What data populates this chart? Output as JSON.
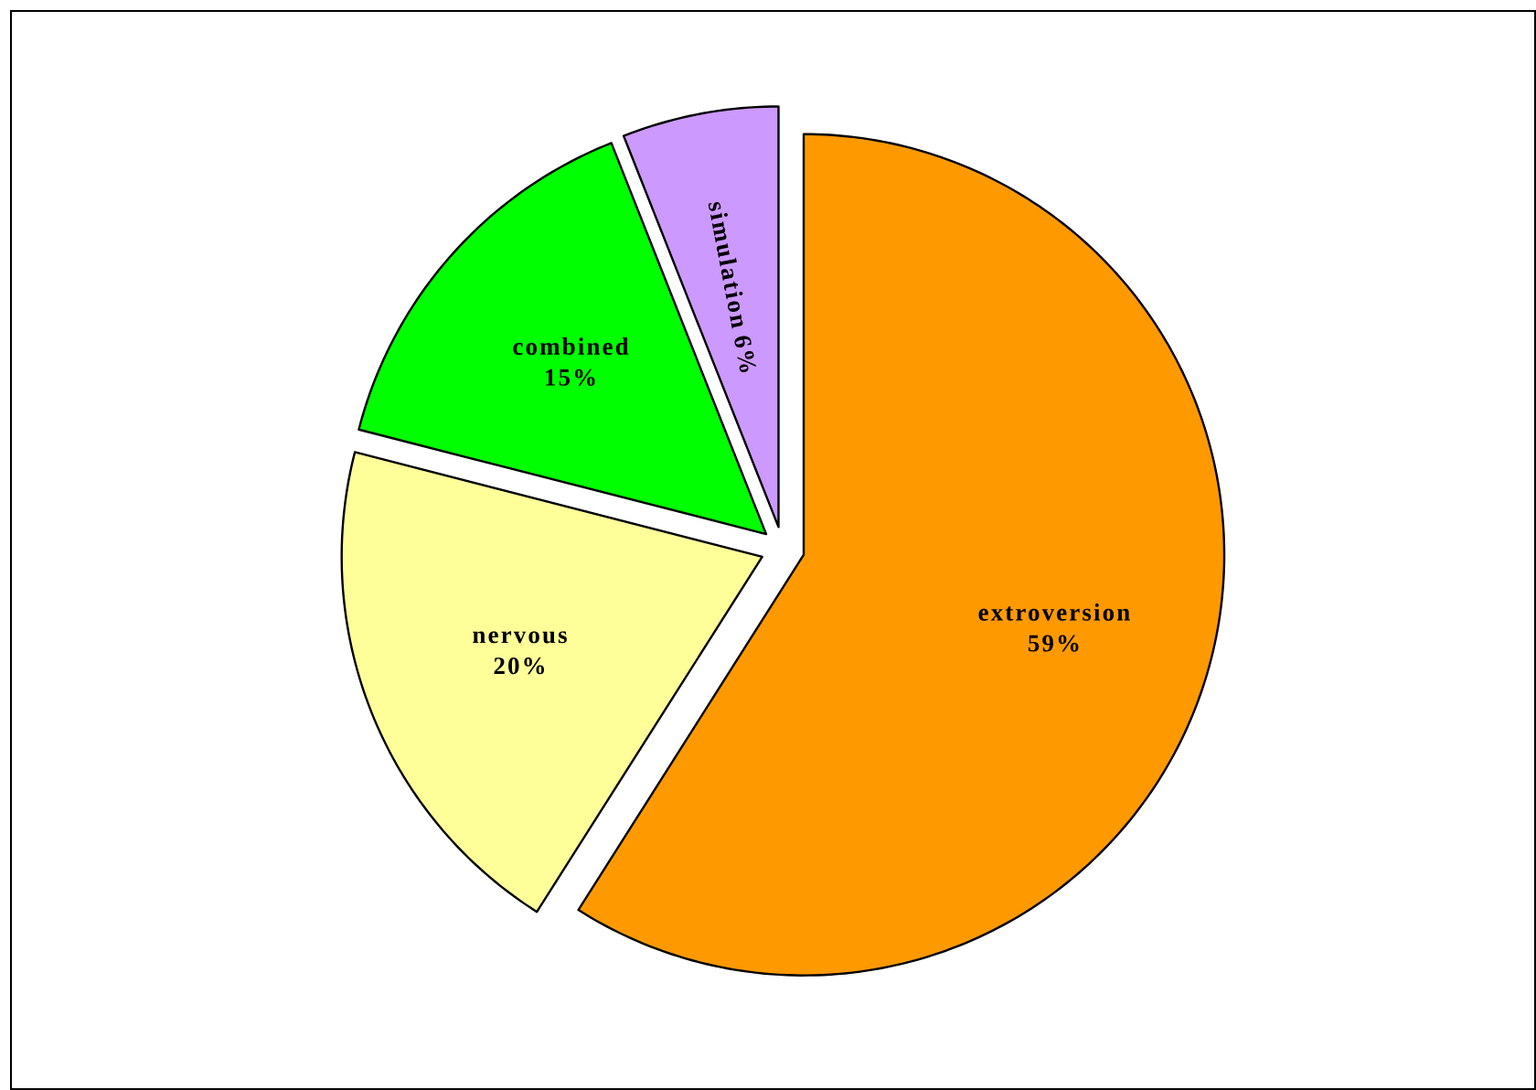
{
  "chart_data": {
    "type": "pie",
    "categories": [
      "extroversion",
      "nervous",
      "combined",
      "simulation"
    ],
    "values": [
      59,
      20,
      15,
      6
    ],
    "value_labels": [
      "59%",
      "20%",
      "15%",
      "6%"
    ],
    "colors": [
      "#ff9900",
      "#ffff99",
      "#00ff00",
      "#cc99ff"
    ]
  }
}
